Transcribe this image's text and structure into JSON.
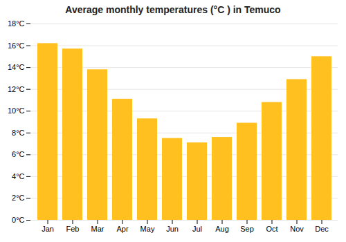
{
  "chart_data": {
    "type": "bar",
    "title": "Average monthly temperatures (°C ) in Temuco",
    "categories": [
      "Jan",
      "Feb",
      "Mar",
      "Apr",
      "May",
      "Jun",
      "Jul",
      "Aug",
      "Sep",
      "Oct",
      "Nov",
      "Dec"
    ],
    "values": [
      16.2,
      15.7,
      13.8,
      11.1,
      9.3,
      7.5,
      7.1,
      7.6,
      8.9,
      10.8,
      12.9,
      15.0
    ],
    "color": "#FFC020",
    "ylim": [
      0,
      18
    ],
    "yticks": [
      {
        "value": 0,
        "label": "0°C"
      },
      {
        "value": 2,
        "label": "2°C"
      },
      {
        "value": 4,
        "label": "4°C"
      },
      {
        "value": 6,
        "label": "6°C"
      },
      {
        "value": 8,
        "label": "8°C"
      },
      {
        "value": 10,
        "label": "10°C"
      },
      {
        "value": 12,
        "label": "12°C"
      },
      {
        "value": 14,
        "label": "14°C"
      },
      {
        "value": 16,
        "label": "16°C"
      },
      {
        "value": 18,
        "label": "18°C"
      }
    ],
    "grid": true
  }
}
